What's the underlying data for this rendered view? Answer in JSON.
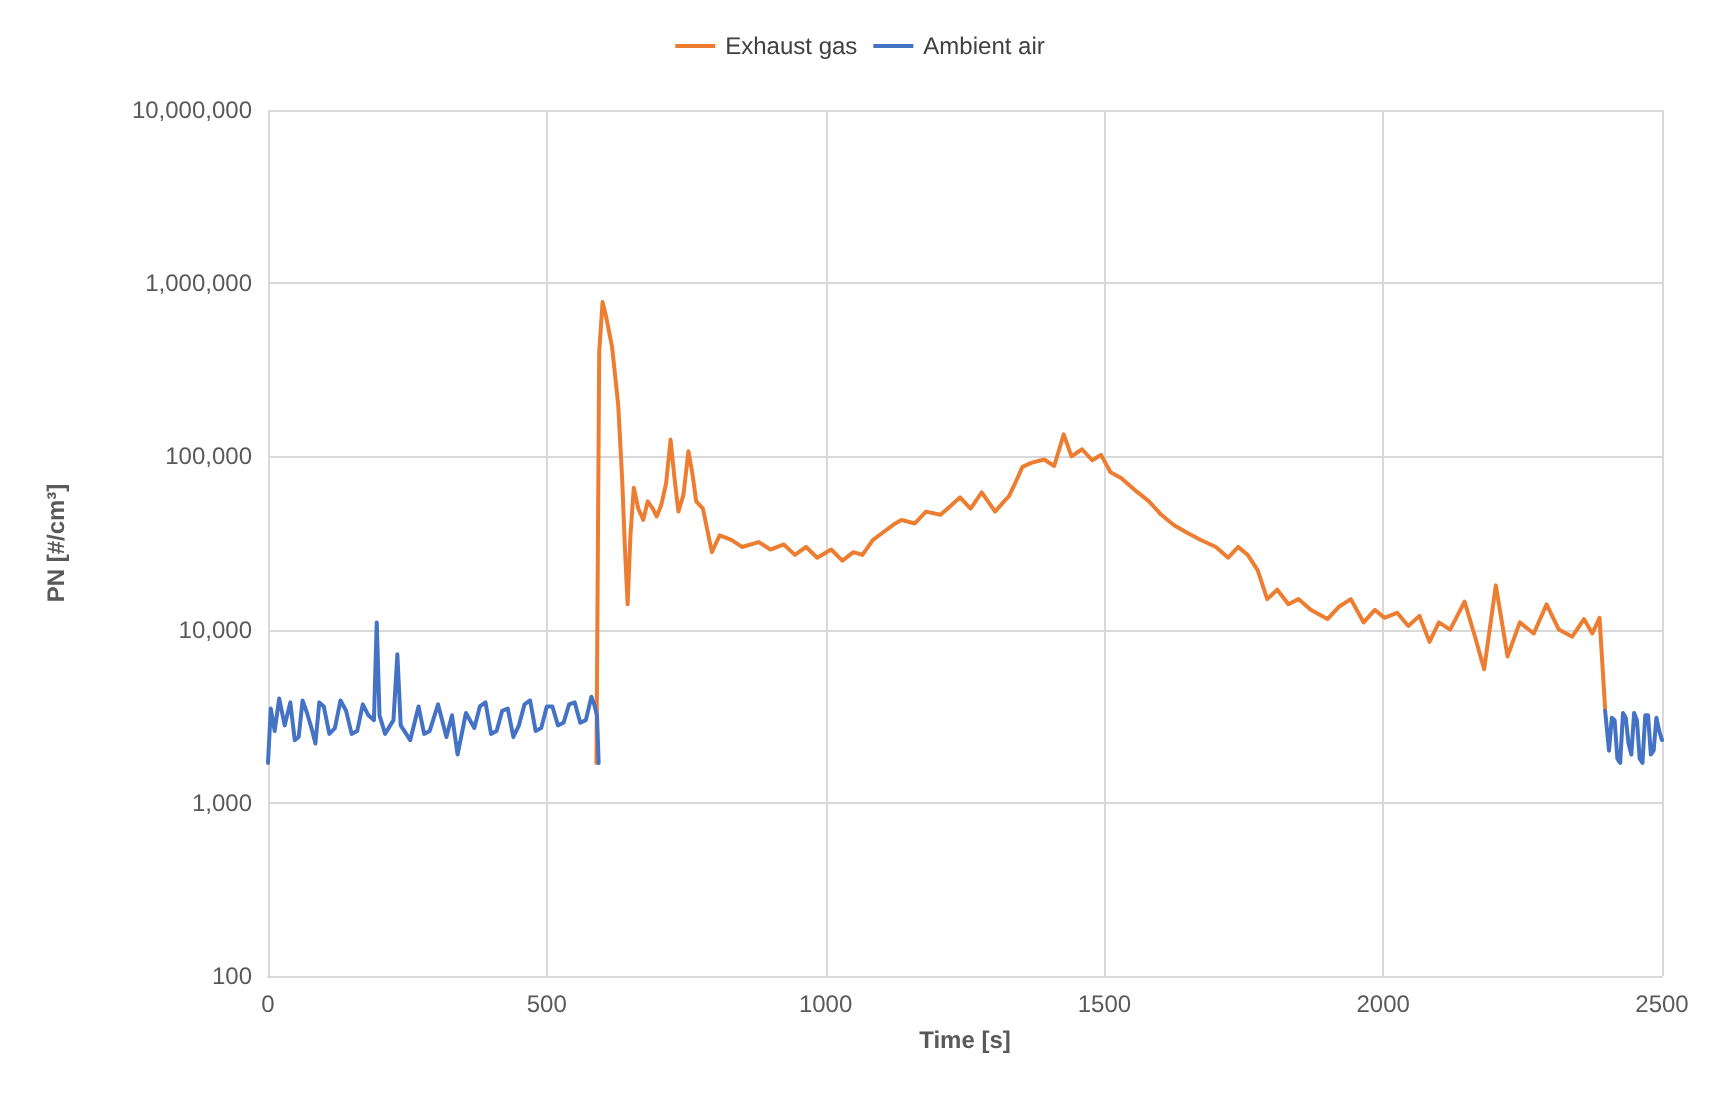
{
  "chart_data": {
    "type": "line",
    "xlabel": "Time [s]",
    "ylabel": "PN [#/cm³]",
    "log": "y",
    "grid": true,
    "legend": "top",
    "marker": "none",
    "line_style": "solid",
    "xlim": [
      0,
      2500
    ],
    "xticks": [
      0,
      500,
      1000,
      1500,
      2000,
      2500
    ],
    "ylim": [
      100,
      10000000
    ],
    "yticks": [
      {
        "value": 100,
        "label": "100"
      },
      {
        "value": 1000,
        "label": "1,000"
      },
      {
        "value": 10000,
        "label": "10,000"
      },
      {
        "value": 100000,
        "label": "100,000"
      },
      {
        "value": 1000000,
        "label": "1,000,000"
      },
      {
        "value": 10000000,
        "label": "10,000,000"
      }
    ],
    "series": [
      {
        "name": "Exhaust gas",
        "color": "#ed7d31",
        "x": [
          589,
          594,
          600,
          606,
          617,
          628,
          635,
          640,
          645,
          650,
          656,
          664,
          673,
          681,
          690,
          697,
          705,
          714,
          722,
          729,
          736,
          745,
          754,
          761,
          768,
          780,
          796,
          810,
          831,
          850,
          880,
          901,
          925,
          945,
          965,
          985,
          1010,
          1030,
          1050,
          1066,
          1085,
          1101,
          1120,
          1136,
          1160,
          1180,
          1206,
          1225,
          1241,
          1260,
          1280,
          1304,
          1320,
          1329,
          1340,
          1353,
          1370,
          1392,
          1410,
          1427,
          1441,
          1460,
          1478,
          1494,
          1511,
          1530,
          1557,
          1580,
          1602,
          1625,
          1650,
          1672,
          1700,
          1722,
          1740,
          1757,
          1775,
          1792,
          1810,
          1830,
          1848,
          1870,
          1900,
          1920,
          1942,
          1965,
          1985,
          2002,
          2025,
          2045,
          2065,
          2083,
          2100,
          2120,
          2146,
          2165,
          2181,
          2202,
          2223,
          2245,
          2270,
          2293,
          2315,
          2339,
          2360,
          2375,
          2388,
          2398
        ],
        "values": [
          1700,
          400000,
          780000,
          650000,
          430000,
          200000,
          76000,
          30000,
          14000,
          35000,
          66000,
          50000,
          43000,
          55000,
          50000,
          45000,
          52000,
          70000,
          125000,
          75000,
          48000,
          60000,
          107000,
          80000,
          55000,
          50000,
          28000,
          35000,
          33000,
          30000,
          32000,
          29000,
          31000,
          27000,
          30000,
          26000,
          29000,
          25000,
          28000,
          27000,
          33000,
          36000,
          40000,
          43000,
          41000,
          48000,
          46000,
          52000,
          58000,
          50000,
          62000,
          48000,
          55000,
          59000,
          70000,
          87000,
          92000,
          96000,
          88000,
          134000,
          100000,
          110000,
          95000,
          102000,
          81000,
          75000,
          63000,
          55000,
          46000,
          40000,
          36000,
          33000,
          30000,
          26000,
          30000,
          27000,
          22000,
          15000,
          17000,
          14000,
          15000,
          13000,
          11500,
          13500,
          15000,
          11000,
          13000,
          11700,
          12500,
          10500,
          12000,
          8500,
          11000,
          10000,
          14500,
          9000,
          5900,
          18000,
          7000,
          11000,
          9500,
          14000,
          10000,
          9100,
          11500,
          9500,
          11700,
          3500
        ]
      },
      {
        "name": "Ambient air",
        "color": "#4472c4",
        "x": [
          0,
          5,
          12,
          20,
          30,
          40,
          48,
          55,
          62,
          70,
          78,
          85,
          92,
          100,
          110,
          120,
          130,
          140,
          150,
          160,
          170,
          180,
          190,
          195,
          200,
          210,
          225,
          232,
          238,
          255,
          270,
          280,
          290,
          305,
          320,
          330,
          340,
          355,
          370,
          380,
          390,
          400,
          410,
          420,
          430,
          440,
          450,
          460,
          470,
          480,
          490,
          500,
          510,
          520,
          530,
          540,
          550,
          560,
          570,
          580,
          585,
          590,
          593,
          1500,
          2398,
          2405,
          2410,
          2415,
          2420,
          2425,
          2430,
          2435,
          2440,
          2445,
          2450,
          2455,
          2460,
          2465,
          2470,
          2475,
          2480,
          2485,
          2490,
          2495,
          2500
        ],
        "values": [
          1700,
          3500,
          2600,
          4000,
          2800,
          3800,
          2300,
          2400,
          3900,
          3300,
          2700,
          2200,
          3800,
          3600,
          2500,
          2700,
          3900,
          3400,
          2500,
          2600,
          3700,
          3200,
          3000,
          11000,
          3200,
          2500,
          3000,
          7200,
          2800,
          2300,
          3600,
          2500,
          2600,
          3700,
          2400,
          3200,
          1900,
          3300,
          2700,
          3600,
          3800,
          2500,
          2600,
          3400,
          3500,
          2400,
          2800,
          3700,
          3900,
          2600,
          2700,
          3600,
          3600,
          2800,
          2900,
          3700,
          3800,
          2900,
          3000,
          4100,
          3700,
          3200,
          1700,
          null,
          3400,
          2000,
          3100,
          3000,
          1800,
          1700,
          3300,
          3100,
          2200,
          1900,
          3300,
          3000,
          1800,
          1700,
          3200,
          3200,
          1900,
          2000,
          3100,
          2600,
          2300
        ]
      }
    ]
  }
}
